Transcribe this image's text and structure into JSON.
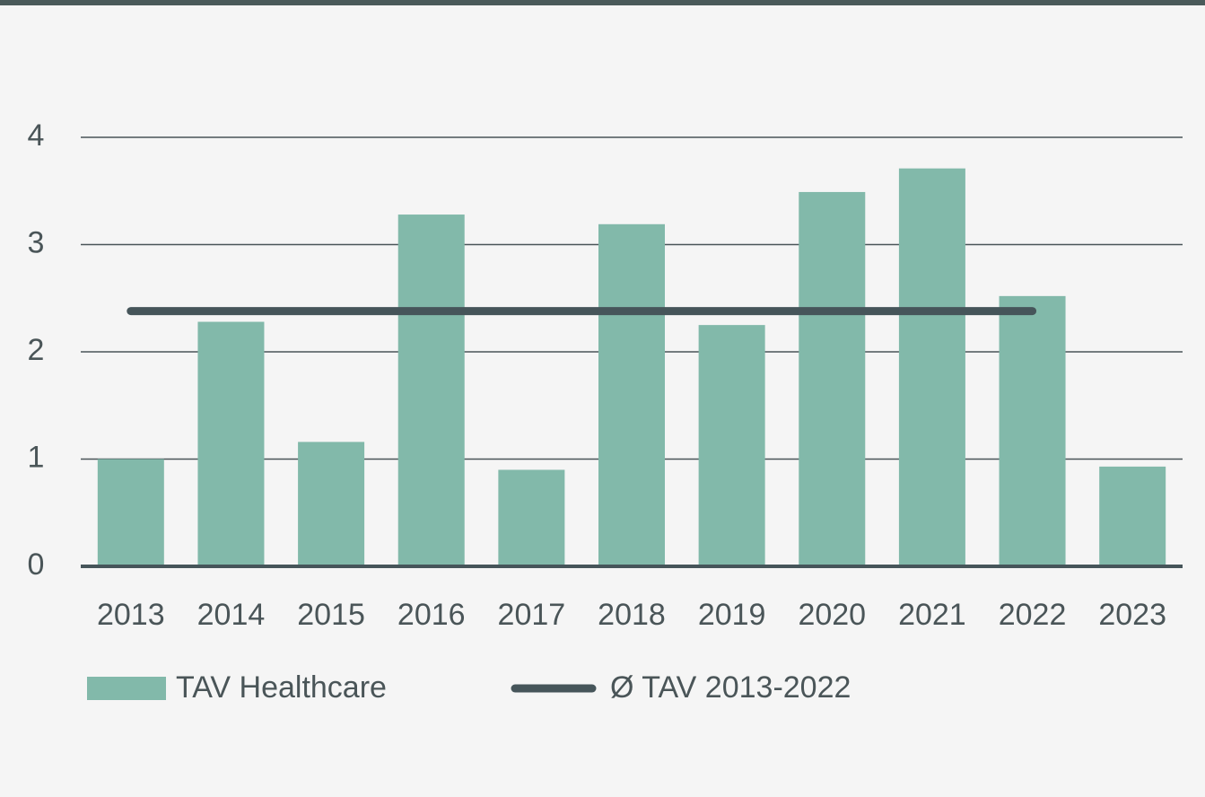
{
  "chart_data": {
    "type": "bar",
    "categories": [
      "2013",
      "2014",
      "2015",
      "2016",
      "2017",
      "2018",
      "2019",
      "2020",
      "2021",
      "2022",
      "2023"
    ],
    "series": [
      {
        "name": "TAV Healthcare",
        "type": "bar",
        "color": "#82b9aa",
        "values": [
          1.0,
          2.28,
          1.16,
          3.28,
          0.9,
          3.19,
          2.25,
          3.49,
          3.71,
          2.52,
          0.93
        ]
      },
      {
        "name": "Ø TAV 2013-2022",
        "type": "line",
        "color": "#46555a",
        "values": [
          2.38,
          2.38,
          2.38,
          2.38,
          2.38,
          2.38,
          2.38,
          2.38,
          2.38,
          2.38,
          null
        ]
      }
    ],
    "ylim": [
      0,
      4
    ],
    "yticks": [
      0,
      1,
      2,
      3,
      4
    ],
    "grid": true,
    "legend": "bottom"
  }
}
